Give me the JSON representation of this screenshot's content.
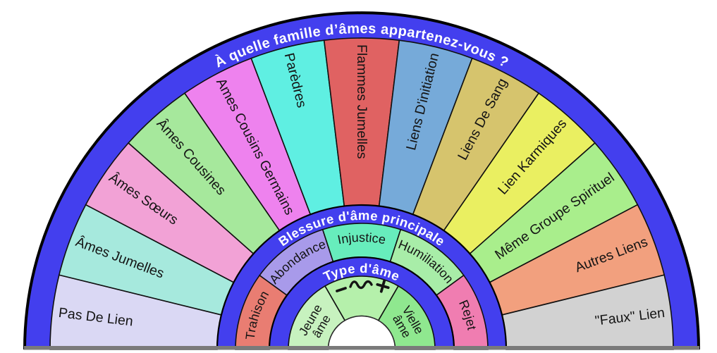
{
  "wheel": {
    "outer_ring": {
      "title": "À quelle famille d’âmes appartenez-vous ?",
      "segments": [
        {
          "label": "Pas De Lien",
          "color": "#dad8f4"
        },
        {
          "label": "Âmes Jumelles",
          "color": "#a6e9dd"
        },
        {
          "label": "Âmes Sœurs",
          "color": "#f2a2d6"
        },
        {
          "label": "Âmes Cousines",
          "color": "#a6e89c"
        },
        {
          "label": "Ames Cousins Germains",
          "color": "#ee82ee"
        },
        {
          "label": "Parèdres",
          "color": "#5fefe2"
        },
        {
          "label": "Flammes Jumelles",
          "color": "#e06262"
        },
        {
          "label": "Liens D'initiation",
          "color": "#76aad9"
        },
        {
          "label": "Liens De Sang",
          "color": "#d6c46d"
        },
        {
          "label": "Lien Karmiques",
          "color": "#eaef61"
        },
        {
          "label": "Même Groupe Spirituel",
          "color": "#a9ee8c"
        },
        {
          "label": "Autres Liens",
          "color": "#f2a07e"
        },
        {
          "label": "\"Faux\" Lien",
          "color": "#d2d2d2"
        }
      ]
    },
    "middle_ring": {
      "title": "Blessure d'âme principale",
      "segments": [
        {
          "label": "Trahison",
          "color": "#e97d72"
        },
        {
          "label": "Abondance",
          "color": "#a89aea"
        },
        {
          "label": "Injustice",
          "color": "#67edbc"
        },
        {
          "label": "Humiliation",
          "color": "#a8eda8"
        },
        {
          "label": "Rejet",
          "color": "#f07db1"
        }
      ]
    },
    "inner_ring": {
      "title": "Type d'âme",
      "segments": [
        {
          "label": "Jeune âme",
          "lines": [
            "Jeune",
            "âme"
          ],
          "color": "#c7f2bf"
        },
        {
          "label": "- ∿ +",
          "render": "symbols",
          "symbols": [
            "minus",
            "wave",
            "plus"
          ],
          "color": "#b5f0ab"
        },
        {
          "label": "Vielle âme",
          "lines": [
            "Vielle",
            "âme"
          ],
          "color": "#8fe88f"
        }
      ]
    },
    "colors": {
      "band_blue": "#433fee",
      "outline": "#000000",
      "segment_border": "#101010",
      "title_text": "#ffffff",
      "label_text": "#141414",
      "baseline_gray": "#7a7a7a",
      "center_hole": "#ffffff",
      "background": "#ffffff"
    }
  }
}
